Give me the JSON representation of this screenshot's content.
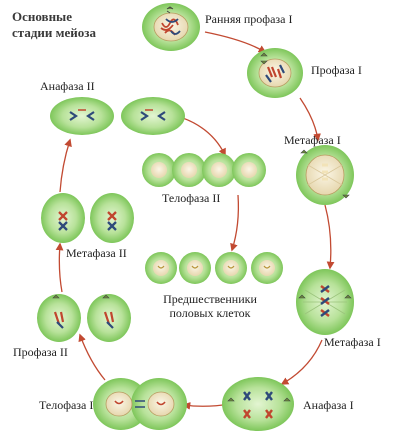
{
  "title_lines": [
    "Основные",
    "стадии мейоза"
  ],
  "stages": {
    "early_prophase_1": "Ранняя профаза I",
    "prophase_1": "Профаза I",
    "metaphase_1_top": "Метафаза I",
    "metaphase_1_bottom": "Метафаза I",
    "anaphase_1": "Анафаза I",
    "telophase_1": "Телофаза I",
    "prophase_2": "Профаза II",
    "metaphase_2": "Метафаза II",
    "anaphase_2": "Анафаза II",
    "telophase_2": "Телофаза II"
  },
  "gamete_precursors_lines": [
    "Предшественники",
    "половых клеток"
  ],
  "colors": {
    "cell_outer": "#8fd06a",
    "cell_inner": "#c8ecb0",
    "nucleus": "#f4ecd4",
    "chromosome_red": "#c0462e",
    "chromosome_blue": "#2e4a7a",
    "arrow": "#c24a32"
  }
}
